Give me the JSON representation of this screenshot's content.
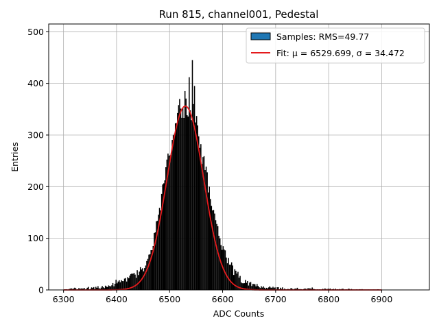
{
  "chart_data": {
    "type": "bar",
    "title": "Run 815, channel001, Pedestal",
    "xlabel": "ADC Counts",
    "ylabel": "Entries",
    "xlim": [
      6272,
      6990
    ],
    "ylim": [
      0,
      515
    ],
    "xticks": [
      6300,
      6400,
      6500,
      6600,
      6700,
      6800,
      6900
    ],
    "yticks": [
      0,
      100,
      200,
      300,
      400,
      500
    ],
    "grid": true,
    "legend_position": "top-right",
    "series": [
      {
        "name": "Samples: RMS=49.77",
        "kind": "histogram",
        "color": "#000000",
        "legend_color": "#1f77b4",
        "bin_width": 2,
        "x_range": [
          6300,
          6900
        ],
        "envelope": [
          [
            6300,
            0
          ],
          [
            6320,
            2
          ],
          [
            6340,
            3
          ],
          [
            6360,
            4
          ],
          [
            6380,
            6
          ],
          [
            6400,
            12
          ],
          [
            6420,
            20
          ],
          [
            6440,
            32
          ],
          [
            6460,
            55
          ],
          [
            6470,
            95
          ],
          [
            6480,
            155
          ],
          [
            6490,
            205
          ],
          [
            6500,
            265
          ],
          [
            6510,
            320
          ],
          [
            6520,
            350
          ],
          [
            6530,
            360
          ],
          [
            6540,
            355
          ],
          [
            6550,
            320
          ],
          [
            6560,
            270
          ],
          [
            6570,
            215
          ],
          [
            6580,
            160
          ],
          [
            6590,
            115
          ],
          [
            6600,
            80
          ],
          [
            6610,
            55
          ],
          [
            6620,
            38
          ],
          [
            6630,
            25
          ],
          [
            6640,
            16
          ],
          [
            6660,
            9
          ],
          [
            6680,
            5
          ],
          [
            6700,
            3
          ],
          [
            6750,
            2
          ],
          [
            6800,
            1
          ],
          [
            6850,
            0.5
          ],
          [
            6900,
            0
          ]
        ],
        "peaks": [
          [
            6542,
            445
          ],
          [
            6536,
            412
          ],
          [
            6546,
            395
          ],
          [
            6528,
            385
          ]
        ]
      },
      {
        "name": "Fit: μ = 6529.699, σ = 34.472",
        "kind": "gaussian",
        "color": "#e41a1c",
        "mu": 6529.699,
        "sigma": 34.472,
        "amplitude": 356,
        "x_range": [
          6300,
          6900
        ]
      }
    ]
  }
}
